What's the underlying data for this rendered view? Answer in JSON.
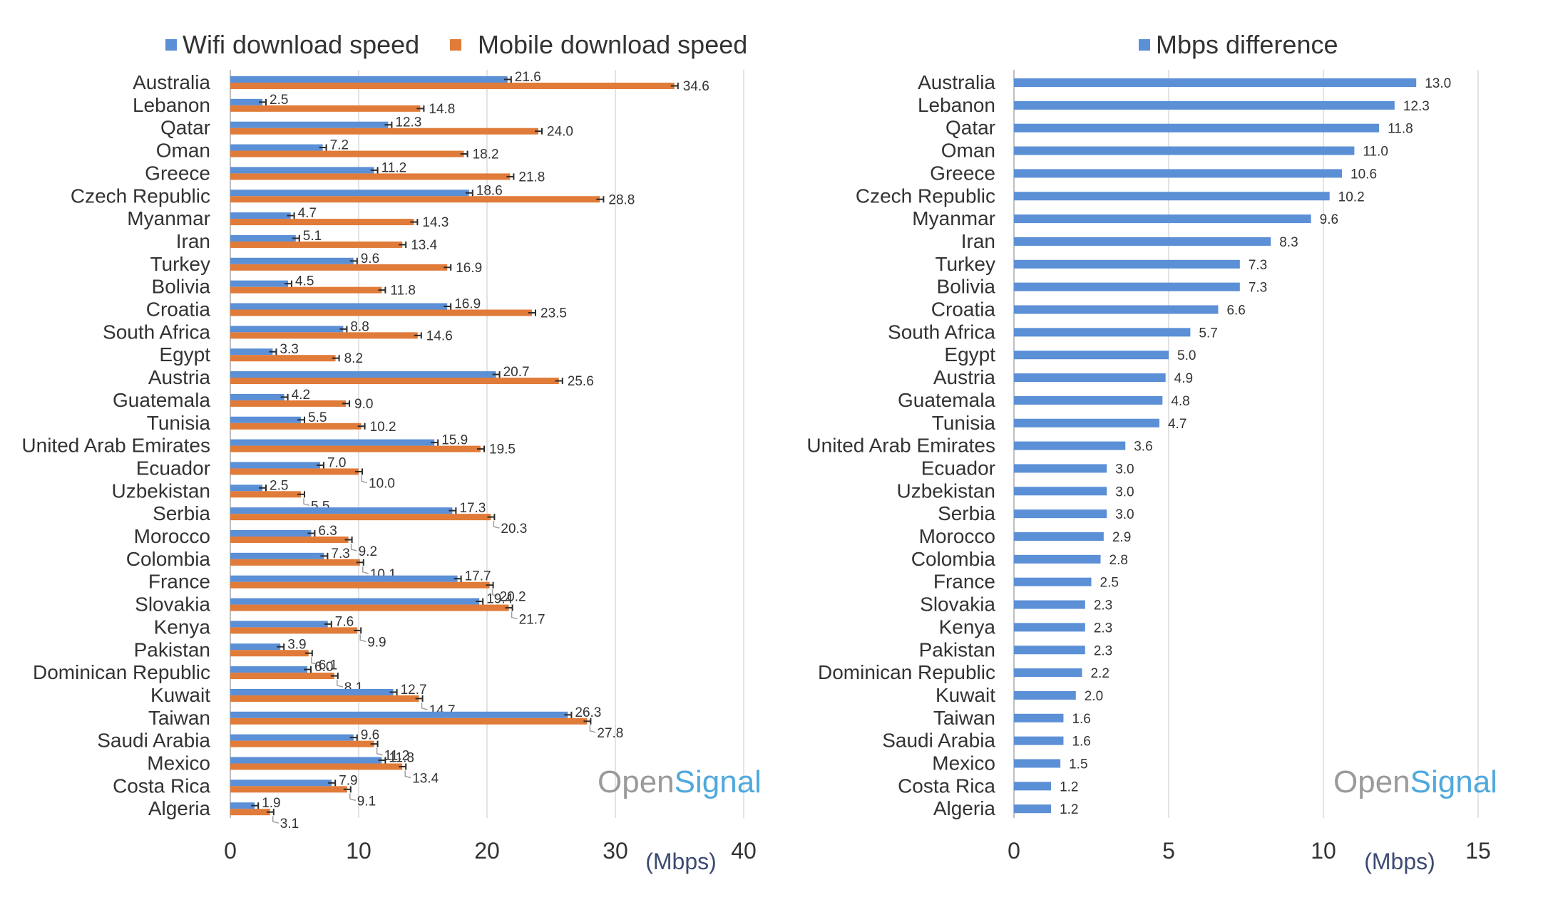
{
  "colors": {
    "wifi": "#5b8fd6",
    "mobile": "#e07b39",
    "difference": "#5b8fd6",
    "brand_open": "#9a9a9a",
    "brand_signal": "#4fa9dc"
  },
  "branding": {
    "part1": "Open",
    "part2": "Signal"
  },
  "chart_data": [
    {
      "type": "bar",
      "orientation": "horizontal",
      "categories": [
        "Australia",
        "Lebanon",
        "Qatar",
        "Oman",
        "Greece",
        "Czech Republic",
        "Myanmar",
        "Iran",
        "Turkey",
        "Bolivia",
        "Croatia",
        "South Africa",
        "Egypt",
        "Austria",
        "Guatemala",
        "Tunisia",
        "United Arab Emirates",
        "Ecuador",
        "Uzbekistan",
        "Serbia",
        "Morocco",
        "Colombia",
        "France",
        "Slovakia",
        "Kenya",
        "Pakistan",
        "Dominican Republic",
        "Kuwait",
        "Taiwan",
        "Saudi Arabia",
        "Mexico",
        "Costa Rica",
        "Algeria"
      ],
      "series": [
        {
          "name": "Wifi download speed",
          "values": [
            21.6,
            2.5,
            12.3,
            7.2,
            11.2,
            18.6,
            4.7,
            5.1,
            9.6,
            4.5,
            16.9,
            8.8,
            3.3,
            20.7,
            4.2,
            5.5,
            15.9,
            7.0,
            2.5,
            17.3,
            6.3,
            7.3,
            17.7,
            19.4,
            7.6,
            3.9,
            6.0,
            12.7,
            26.3,
            9.6,
            11.8,
            7.9,
            1.9
          ],
          "labels": [
            "21.6",
            "2.5",
            "12.3",
            "7.2",
            "11.2",
            "18.6",
            "4.7",
            "5.1",
            "9.6",
            "4.5",
            "16.9",
            "8.8",
            "3.3",
            "20.7",
            "4.2",
            "5.5",
            "15.9",
            "7.0",
            "2.5",
            "17.3",
            "6.3",
            "7.3",
            "17.7",
            "19.4",
            "7.6",
            "3.9",
            "6.0",
            "12.7",
            "26.3",
            "9.6",
            "11.8",
            "7.9",
            "1.9"
          ]
        },
        {
          "name": "Mobile download speed",
          "values": [
            34.6,
            14.8,
            24.0,
            18.2,
            21.8,
            28.8,
            14.3,
            13.4,
            16.9,
            11.8,
            23.5,
            14.6,
            8.2,
            25.6,
            9.0,
            10.2,
            19.5,
            10.0,
            5.5,
            20.3,
            9.2,
            10.1,
            20.2,
            21.7,
            9.9,
            6.1,
            8.1,
            14.7,
            27.8,
            11.2,
            13.4,
            9.1,
            3.1
          ],
          "labels": [
            "34.6",
            "14.8",
            "24.0",
            "18.2",
            "21.8",
            "28.8",
            "14.3",
            "13.4",
            "16.9",
            "11.8",
            "23.5",
            "14.6",
            "8.2",
            "25.6",
            "9.0",
            "10.2",
            "19.5",
            "10.0",
            "5.5",
            "20.3",
            "9.2",
            "10.1",
            "20.2",
            "21.7",
            "9.9",
            "6.1",
            "8.1",
            "14.7",
            "27.8",
            "11.2",
            "13.4",
            "9.1",
            "3.1"
          ]
        }
      ],
      "xlim": [
        0,
        40
      ],
      "xticks": [
        "0",
        "10",
        "20",
        "30",
        "40"
      ],
      "xlabel": "(Mbps)",
      "legend_position": "top",
      "grid": true,
      "error_bars": true
    },
    {
      "type": "bar",
      "orientation": "horizontal",
      "categories": [
        "Australia",
        "Lebanon",
        "Qatar",
        "Oman",
        "Greece",
        "Czech Republic",
        "Myanmar",
        "Iran",
        "Turkey",
        "Bolivia",
        "Croatia",
        "South Africa",
        "Egypt",
        "Austria",
        "Guatemala",
        "Tunisia",
        "United Arab Emirates",
        "Ecuador",
        "Uzbekistan",
        "Serbia",
        "Morocco",
        "Colombia",
        "France",
        "Slovakia",
        "Kenya",
        "Pakistan",
        "Dominican Republic",
        "Kuwait",
        "Taiwan",
        "Saudi Arabia",
        "Mexico",
        "Costa Rica",
        "Algeria"
      ],
      "series": [
        {
          "name": "Mbps difference",
          "values": [
            13.0,
            12.3,
            11.8,
            11.0,
            10.6,
            10.2,
            9.6,
            8.3,
            7.3,
            7.3,
            6.6,
            5.7,
            5.0,
            4.9,
            4.8,
            4.7,
            3.6,
            3.0,
            3.0,
            3.0,
            2.9,
            2.8,
            2.5,
            2.3,
            2.3,
            2.3,
            2.2,
            2.0,
            1.6,
            1.6,
            1.5,
            1.2,
            1.2
          ],
          "labels": [
            "13.0",
            "12.3",
            "11.8",
            "11.0",
            "10.6",
            "10.2",
            "9.6",
            "8.3",
            "7.3",
            "7.3",
            "6.6",
            "5.7",
            "5.0",
            "4.9",
            "4.8",
            "4.7",
            "3.6",
            "3.0",
            "3.0",
            "3.0",
            "2.9",
            "2.8",
            "2.5",
            "2.3",
            "2.3",
            "2.3",
            "2.2",
            "2.0",
            "1.6",
            "1.6",
            "1.5",
            "1.2",
            "1.2"
          ]
        }
      ],
      "xlim": [
        0,
        15
      ],
      "xticks": [
        "0",
        "5",
        "10",
        "15"
      ],
      "xlabel": "(Mbps)",
      "legend_position": "top",
      "grid": true
    }
  ]
}
